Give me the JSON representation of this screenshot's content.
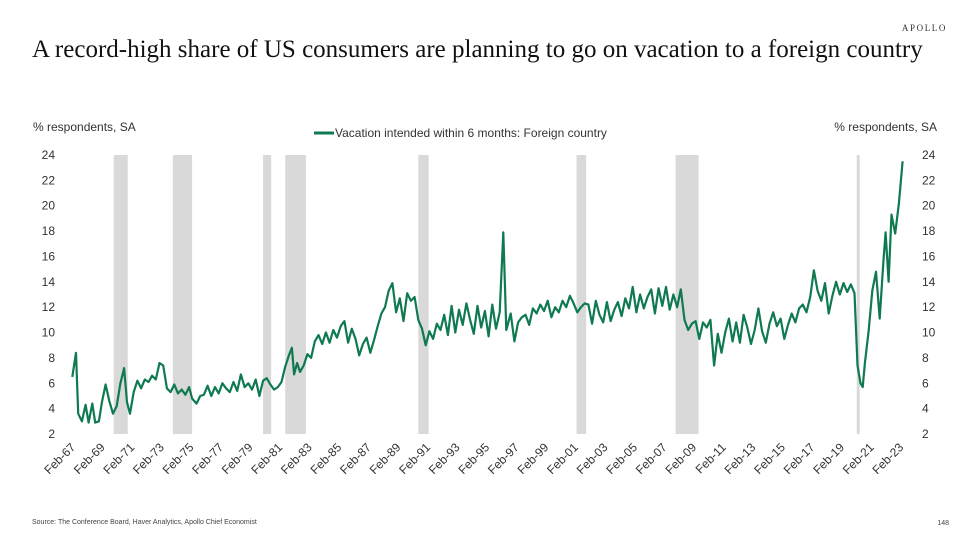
{
  "brand": "APOLLO",
  "title": "A record-high share of US consumers are planning to go on vacation to a foreign country",
  "source": "Source: The Conference Board, Haver Analytics, Apollo Chief Economist",
  "page_number": "148",
  "colors": {
    "series": "#0f7a4f",
    "recession": "#d9d9d9"
  },
  "chart_data": {
    "type": "line",
    "ylabel_left": "% respondents, SA",
    "ylabel_right": "% respondents, SA",
    "ylim": [
      2,
      24
    ],
    "y_ticks": [
      24,
      22,
      20,
      18,
      16,
      14,
      12,
      10,
      8,
      6,
      4,
      2
    ],
    "x_range": [
      1967.08,
      2023.75
    ],
    "x_tick_labels": [
      "Feb-67",
      "Feb-69",
      "Feb-71",
      "Feb-73",
      "Feb-75",
      "Feb-77",
      "Feb-79",
      "Feb-81",
      "Feb-83",
      "Feb-85",
      "Feb-87",
      "Feb-89",
      "Feb-91",
      "Feb-93",
      "Feb-95",
      "Feb-97",
      "Feb-99",
      "Feb-01",
      "Feb-03",
      "Feb-05",
      "Feb-07",
      "Feb-09",
      "Feb-11",
      "Feb-13",
      "Feb-15",
      "Feb-17",
      "Feb-19",
      "Feb-21",
      "Feb-23"
    ],
    "grid": false,
    "legend": "top-center",
    "recession_shading": [
      [
        1969.9,
        1970.85
      ],
      [
        1973.9,
        1975.2
      ],
      [
        1980.0,
        1980.55
      ],
      [
        1981.5,
        1982.9
      ],
      [
        1990.5,
        1991.2
      ],
      [
        2001.2,
        2001.85
      ],
      [
        2007.9,
        2009.45
      ],
      [
        2020.15,
        2020.35
      ]
    ],
    "series": [
      {
        "name": "Vacation intended within 6 months: Foreign country",
        "points": [
          [
            1967.1,
            6.5
          ],
          [
            1967.35,
            8.4
          ],
          [
            1967.5,
            3.6
          ],
          [
            1967.75,
            3.0
          ],
          [
            1968.0,
            4.3
          ],
          [
            1968.2,
            2.9
          ],
          [
            1968.45,
            4.4
          ],
          [
            1968.65,
            2.9
          ],
          [
            1968.9,
            3.0
          ],
          [
            1969.1,
            4.5
          ],
          [
            1969.35,
            5.9
          ],
          [
            1969.6,
            4.6
          ],
          [
            1969.85,
            3.6
          ],
          [
            1970.1,
            4.2
          ],
          [
            1970.35,
            6.0
          ],
          [
            1970.6,
            7.2
          ],
          [
            1970.8,
            4.5
          ],
          [
            1971.0,
            3.6
          ],
          [
            1971.25,
            5.3
          ],
          [
            1971.5,
            6.2
          ],
          [
            1971.75,
            5.6
          ],
          [
            1972.0,
            6.3
          ],
          [
            1972.25,
            6.1
          ],
          [
            1972.5,
            6.6
          ],
          [
            1972.75,
            6.3
          ],
          [
            1973.0,
            7.6
          ],
          [
            1973.25,
            7.4
          ],
          [
            1973.5,
            5.6
          ],
          [
            1973.75,
            5.3
          ],
          [
            1974.0,
            5.9
          ],
          [
            1974.25,
            5.2
          ],
          [
            1974.5,
            5.5
          ],
          [
            1974.75,
            5.1
          ],
          [
            1975.0,
            5.7
          ],
          [
            1975.2,
            4.8
          ],
          [
            1975.5,
            4.4
          ],
          [
            1975.75,
            5.0
          ],
          [
            1976.0,
            5.1
          ],
          [
            1976.25,
            5.8
          ],
          [
            1976.5,
            5.0
          ],
          [
            1976.75,
            5.7
          ],
          [
            1977.0,
            5.2
          ],
          [
            1977.25,
            6.0
          ],
          [
            1977.5,
            5.6
          ],
          [
            1977.75,
            5.3
          ],
          [
            1978.0,
            6.1
          ],
          [
            1978.25,
            5.4
          ],
          [
            1978.5,
            6.7
          ],
          [
            1978.75,
            5.7
          ],
          [
            1979.0,
            6.0
          ],
          [
            1979.25,
            5.5
          ],
          [
            1979.5,
            6.3
          ],
          [
            1979.75,
            5.0
          ],
          [
            1980.0,
            6.2
          ],
          [
            1980.25,
            6.4
          ],
          [
            1980.5,
            5.9
          ],
          [
            1980.75,
            5.5
          ],
          [
            1981.0,
            5.7
          ],
          [
            1981.25,
            6.1
          ],
          [
            1981.5,
            7.3
          ],
          [
            1981.75,
            8.2
          ],
          [
            1981.95,
            8.8
          ],
          [
            1982.1,
            6.7
          ],
          [
            1982.3,
            7.6
          ],
          [
            1982.5,
            6.9
          ],
          [
            1982.75,
            7.4
          ],
          [
            1983.0,
            8.3
          ],
          [
            1983.25,
            8.0
          ],
          [
            1983.5,
            9.3
          ],
          [
            1983.75,
            9.8
          ],
          [
            1984.0,
            9.1
          ],
          [
            1984.25,
            10.0
          ],
          [
            1984.5,
            9.2
          ],
          [
            1984.75,
            10.2
          ],
          [
            1985.0,
            9.6
          ],
          [
            1985.25,
            10.5
          ],
          [
            1985.5,
            10.9
          ],
          [
            1985.75,
            9.2
          ],
          [
            1986.0,
            10.3
          ],
          [
            1986.25,
            9.5
          ],
          [
            1986.5,
            8.2
          ],
          [
            1986.75,
            9.1
          ],
          [
            1987.0,
            9.6
          ],
          [
            1987.25,
            8.4
          ],
          [
            1987.5,
            9.4
          ],
          [
            1987.75,
            10.5
          ],
          [
            1988.0,
            11.5
          ],
          [
            1988.25,
            12.0
          ],
          [
            1988.5,
            13.3
          ],
          [
            1988.75,
            13.9
          ],
          [
            1989.0,
            11.6
          ],
          [
            1989.25,
            12.7
          ],
          [
            1989.5,
            10.9
          ],
          [
            1989.75,
            13.1
          ],
          [
            1990.0,
            12.5
          ],
          [
            1990.25,
            12.8
          ],
          [
            1990.5,
            11.0
          ],
          [
            1990.75,
            10.3
          ],
          [
            1991.0,
            9.0
          ],
          [
            1991.25,
            10.1
          ],
          [
            1991.5,
            9.5
          ],
          [
            1991.75,
            10.7
          ],
          [
            1992.0,
            10.2
          ],
          [
            1992.25,
            11.4
          ],
          [
            1992.5,
            9.8
          ],
          [
            1992.75,
            12.1
          ],
          [
            1993.0,
            10.0
          ],
          [
            1993.25,
            11.8
          ],
          [
            1993.5,
            10.6
          ],
          [
            1993.75,
            12.3
          ],
          [
            1994.0,
            11.0
          ],
          [
            1994.25,
            9.9
          ],
          [
            1994.5,
            12.1
          ],
          [
            1994.75,
            10.4
          ],
          [
            1995.0,
            11.7
          ],
          [
            1995.25,
            9.7
          ],
          [
            1995.5,
            12.2
          ],
          [
            1995.75,
            10.3
          ],
          [
            1996.0,
            11.6
          ],
          [
            1996.25,
            17.9
          ],
          [
            1996.45,
            10.2
          ],
          [
            1996.75,
            11.5
          ],
          [
            1997.0,
            9.3
          ],
          [
            1997.25,
            10.8
          ],
          [
            1997.5,
            11.2
          ],
          [
            1997.75,
            11.4
          ],
          [
            1998.0,
            10.6
          ],
          [
            1998.25,
            11.9
          ],
          [
            1998.5,
            11.5
          ],
          [
            1998.75,
            12.2
          ],
          [
            1999.0,
            11.7
          ],
          [
            1999.25,
            12.5
          ],
          [
            1999.5,
            11.2
          ],
          [
            1999.75,
            12.0
          ],
          [
            2000.0,
            11.6
          ],
          [
            2000.25,
            12.5
          ],
          [
            2000.5,
            12.0
          ],
          [
            2000.75,
            12.9
          ],
          [
            2001.0,
            12.3
          ],
          [
            2001.25,
            11.6
          ],
          [
            2001.5,
            12.0
          ],
          [
            2001.75,
            12.3
          ],
          [
            2002.0,
            12.2
          ],
          [
            2002.25,
            10.7
          ],
          [
            2002.5,
            12.5
          ],
          [
            2002.75,
            11.4
          ],
          [
            2003.0,
            10.8
          ],
          [
            2003.25,
            12.4
          ],
          [
            2003.5,
            10.9
          ],
          [
            2003.75,
            11.8
          ],
          [
            2004.0,
            12.4
          ],
          [
            2004.25,
            11.3
          ],
          [
            2004.5,
            12.7
          ],
          [
            2004.75,
            11.9
          ],
          [
            2005.0,
            13.6
          ],
          [
            2005.25,
            11.6
          ],
          [
            2005.5,
            13.0
          ],
          [
            2005.75,
            11.9
          ],
          [
            2006.0,
            12.8
          ],
          [
            2006.25,
            13.4
          ],
          [
            2006.5,
            11.5
          ],
          [
            2006.75,
            13.5
          ],
          [
            2007.0,
            12.1
          ],
          [
            2007.25,
            13.6
          ],
          [
            2007.5,
            11.8
          ],
          [
            2007.75,
            13.0
          ],
          [
            2008.0,
            12.0
          ],
          [
            2008.25,
            13.4
          ],
          [
            2008.5,
            11.0
          ],
          [
            2008.75,
            10.2
          ],
          [
            2009.0,
            10.7
          ],
          [
            2009.25,
            10.9
          ],
          [
            2009.5,
            9.5
          ],
          [
            2009.75,
            10.8
          ],
          [
            2010.0,
            10.4
          ],
          [
            2010.25,
            11.0
          ],
          [
            2010.5,
            7.4
          ],
          [
            2010.75,
            9.9
          ],
          [
            2011.0,
            8.4
          ],
          [
            2011.25,
            10.0
          ],
          [
            2011.5,
            11.1
          ],
          [
            2011.75,
            9.3
          ],
          [
            2012.0,
            10.8
          ],
          [
            2012.25,
            9.2
          ],
          [
            2012.5,
            11.4
          ],
          [
            2012.75,
            10.4
          ],
          [
            2013.0,
            9.1
          ],
          [
            2013.25,
            10.2
          ],
          [
            2013.5,
            11.9
          ],
          [
            2013.75,
            10.1
          ],
          [
            2014.0,
            9.2
          ],
          [
            2014.25,
            10.7
          ],
          [
            2014.5,
            11.6
          ],
          [
            2014.75,
            10.5
          ],
          [
            2015.0,
            11.1
          ],
          [
            2015.25,
            9.5
          ],
          [
            2015.5,
            10.6
          ],
          [
            2015.75,
            11.5
          ],
          [
            2016.0,
            10.8
          ],
          [
            2016.25,
            11.9
          ],
          [
            2016.5,
            12.2
          ],
          [
            2016.75,
            11.6
          ],
          [
            2017.0,
            12.8
          ],
          [
            2017.25,
            14.9
          ],
          [
            2017.5,
            13.3
          ],
          [
            2017.75,
            12.5
          ],
          [
            2018.0,
            13.9
          ],
          [
            2018.25,
            11.5
          ],
          [
            2018.5,
            12.9
          ],
          [
            2018.75,
            14.0
          ],
          [
            2019.0,
            13.0
          ],
          [
            2019.25,
            13.9
          ],
          [
            2019.5,
            13.2
          ],
          [
            2019.75,
            13.8
          ],
          [
            2020.0,
            13.1
          ],
          [
            2020.2,
            7.4
          ],
          [
            2020.4,
            6.0
          ],
          [
            2020.55,
            5.7
          ],
          [
            2020.7,
            7.6
          ],
          [
            2020.95,
            10.1
          ],
          [
            2021.2,
            13.3
          ],
          [
            2021.45,
            14.8
          ],
          [
            2021.7,
            11.1
          ],
          [
            2021.95,
            15.6
          ],
          [
            2022.1,
            17.9
          ],
          [
            2022.3,
            14.0
          ],
          [
            2022.5,
            19.3
          ],
          [
            2022.75,
            17.8
          ],
          [
            2023.0,
            20.2
          ],
          [
            2023.25,
            23.5
          ]
        ]
      }
    ]
  }
}
